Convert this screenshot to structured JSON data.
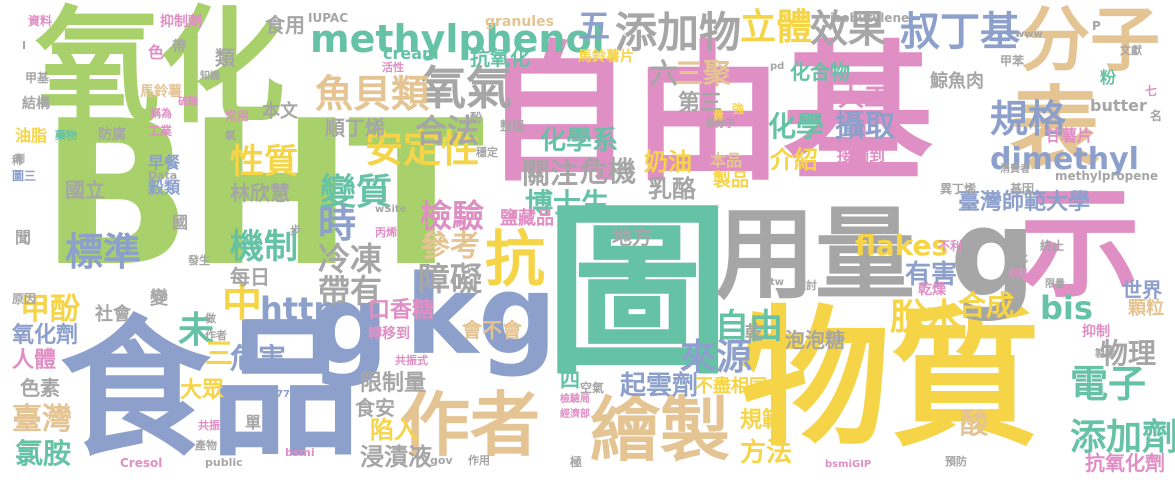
{
  "words": [
    {
      "text": "BHT",
      "color": "#a8d16c"
    },
    {
      "text": "自由基",
      "color": "#e08fc4"
    },
    {
      "text": "圖",
      "color": "#66c2a5"
    },
    {
      "text": "物質",
      "color": "#f5d547"
    },
    {
      "text": "食品",
      "color": "#8da0cb"
    },
    {
      "text": "氧化",
      "color": "#a8d16c"
    },
    {
      "text": "用量",
      "color": "#a6a6a6"
    },
    {
      "text": "kg",
      "color": "#8da0cb"
    },
    {
      "text": "g",
      "color": "#8da0cb"
    },
    {
      "text": "g",
      "color": "#a6a6a6"
    },
    {
      "text": "示",
      "color": "#e08fc4"
    },
    {
      "text": "分子",
      "color": "#e5c494"
    },
    {
      "text": "表",
      "color": "#e5c494"
    },
    {
      "text": "繪製",
      "color": "#e5c494"
    },
    {
      "text": "作者",
      "color": "#e5c494"
    },
    {
      "text": "抗",
      "color": "#f5d547"
    },
    {
      "text": "methylphenol",
      "color": "#66c2a5"
    },
    {
      "text": "添加物",
      "color": "#a6a6a6"
    },
    {
      "text": "氧氣",
      "color": "#a6a6a6"
    },
    {
      "text": "魚貝類",
      "color": "#e5c494"
    },
    {
      "text": "規格",
      "color": "#8da0cb"
    },
    {
      "text": "dimethyl",
      "color": "#8da0cb"
    },
    {
      "text": "效果",
      "color": "#a6a6a6"
    },
    {
      "text": "叔丁基",
      "color": "#8da0cb"
    },
    {
      "text": "立體",
      "color": "#f5d547"
    },
    {
      "text": "五",
      "color": "#8da0cb"
    },
    {
      "text": "六",
      "color": "#a6a6a6"
    },
    {
      "text": "三聚",
      "color": "#e5c494"
    },
    {
      "text": "自由",
      "color": "#66c2a5"
    },
    {
      "text": "電子",
      "color": "#66c2a5"
    },
    {
      "text": "添加劑",
      "color": "#66c2a5"
    },
    {
      "text": "物理",
      "color": "#a6a6a6"
    },
    {
      "text": "脫水",
      "color": "#f5d547"
    },
    {
      "text": "來源",
      "color": "#8da0cb"
    },
    {
      "text": "機制",
      "color": "#66c2a5"
    },
    {
      "text": "http",
      "color": "#8da0cb"
    },
    {
      "text": "標準",
      "color": "#8da0cb"
    },
    {
      "text": "性質",
      "color": "#f5d547"
    },
    {
      "text": "變質",
      "color": "#66c2a5"
    },
    {
      "text": "安定性",
      "color": "#f5d547"
    },
    {
      "text": "檢驗",
      "color": "#e08fc4"
    },
    {
      "text": "參考",
      "color": "#e5c494"
    },
    {
      "text": "障礙",
      "color": "#a6a6a6"
    },
    {
      "text": "冷凍",
      "color": "#a6a6a6"
    },
    {
      "text": "帶有",
      "color": "#a6a6a6"
    },
    {
      "text": "時",
      "color": "#8da0cb"
    },
    {
      "text": "中",
      "color": "#f5d547"
    },
    {
      "text": "未",
      "color": "#66c2a5"
    },
    {
      "text": "甲酚",
      "color": "#f5d547"
    },
    {
      "text": "臺灣",
      "color": "#e5c494"
    },
    {
      "text": "氯胺",
      "color": "#66c2a5"
    },
    {
      "text": "危害",
      "color": "#8da0cb"
    },
    {
      "text": "合法",
      "color": "#a6a6a6"
    },
    {
      "text": "關注",
      "color": "#a6a6a6"
    },
    {
      "text": "危機",
      "color": "#a6a6a6"
    },
    {
      "text": "化學系",
      "color": "#66c2a5"
    },
    {
      "text": "博士生",
      "color": "#66c2a5"
    },
    {
      "text": "化學",
      "color": "#66c2a5"
    },
    {
      "text": "攝取",
      "color": "#8da0cb"
    },
    {
      "text": "人工",
      "color": "#e08fc4"
    },
    {
      "text": "介紹",
      "color": "#f5d547"
    },
    {
      "text": "奶油",
      "color": "#f5d547"
    },
    {
      "text": "乳酪",
      "color": "#a6a6a6"
    },
    {
      "text": "臺灣師範大學",
      "color": "#8da0cb"
    },
    {
      "text": "flakes",
      "color": "#f5d547"
    },
    {
      "text": "bis",
      "color": "#66c2a5"
    },
    {
      "text": "合成",
      "color": "#f5d547"
    },
    {
      "text": "有害",
      "color": "#8da0cb"
    },
    {
      "text": "世界",
      "color": "#8da0cb"
    },
    {
      "text": "顆粒",
      "color": "#e5c494"
    },
    {
      "text": "抑制",
      "color": "#e08fc4"
    },
    {
      "text": "抗氧化劑",
      "color": "#e08fc4"
    },
    {
      "text": "起雲劑",
      "color": "#8da0cb"
    },
    {
      "text": "方法",
      "color": "#f5d547"
    },
    {
      "text": "規範",
      "color": "#f5d547"
    },
    {
      "text": "酸",
      "color": "#e5c494"
    },
    {
      "text": "浸漬液",
      "color": "#a6a6a6"
    },
    {
      "text": "陷入",
      "color": "#f5d547"
    },
    {
      "text": "食安",
      "color": "#a6a6a6"
    },
    {
      "text": "限制量",
      "color": "#a6a6a6"
    },
    {
      "text": "大眾",
      "color": "#f5d547"
    },
    {
      "text": "氧化劑",
      "color": "#8da0cb"
    },
    {
      "text": "人體",
      "color": "#e08fc4"
    },
    {
      "text": "色素",
      "color": "#a6a6a6"
    },
    {
      "text": "口香糖",
      "color": "#e08fc4"
    },
    {
      "text": "泡泡糖",
      "color": "#a6a6a6"
    },
    {
      "text": "不盡相同",
      "color": "#f5d547"
    },
    {
      "text": "會不會",
      "color": "#e5c494"
    },
    {
      "text": "社會",
      "color": "#a6a6a6"
    },
    {
      "text": "每日",
      "color": "#a6a6a6"
    },
    {
      "text": "國立",
      "color": "#a6a6a6"
    },
    {
      "text": "林欣慧",
      "color": "#a6a6a6"
    },
    {
      "text": "順丁烯",
      "color": "#a6a6a6"
    },
    {
      "text": "本文",
      "color": "#a6a6a6"
    },
    {
      "text": "抗氧化",
      "color": "#66c2a5"
    },
    {
      "text": "化合物",
      "color": "#66c2a5"
    },
    {
      "text": "鯨魚肉",
      "color": "#a6a6a6"
    },
    {
      "text": "甘薯片",
      "color": "#e08fc4"
    },
    {
      "text": "馬鈴薯片",
      "color": "#f5d547"
    },
    {
      "text": "食用",
      "color": "#a6a6a6"
    },
    {
      "text": "類",
      "color": "#a6a6a6"
    },
    {
      "text": "cream",
      "color": "#66c2a5"
    },
    {
      "text": "butter",
      "color": "#a6a6a6"
    },
    {
      "text": "第三",
      "color": "#a6a6a6"
    },
    {
      "text": "製品",
      "color": "#f5d547"
    },
    {
      "text": "本品",
      "color": "#e5c494"
    },
    {
      "text": "接觸到",
      "color": "#e08fc4"
    },
    {
      "text": "地方",
      "color": "#a6a6a6"
    },
    {
      "text": "鹽藏品",
      "color": "#e08fc4"
    },
    {
      "text": "乾燥",
      "color": "#e08fc4"
    },
    {
      "text": "轉移到",
      "color": "#e08fc4"
    },
    {
      "text": "資料",
      "color": "#e08fc4"
    },
    {
      "text": "抑制劑",
      "color": "#e08fc4"
    },
    {
      "text": "IUPAC",
      "color": "#a6a6a6"
    },
    {
      "text": "granules",
      "color": "#e5c494"
    },
    {
      "text": "isobutylene",
      "color": "#a6a6a6"
    },
    {
      "text": "色",
      "color": "#e08fc4"
    },
    {
      "text": "粉",
      "color": "#66c2a5"
    },
    {
      "text": "早餐",
      "color": "#8da0cb"
    },
    {
      "text": "穀類",
      "color": "#8da0cb"
    },
    {
      "text": "油脂",
      "color": "#f5d547"
    },
    {
      "text": "防腐",
      "color": "#a6a6a6"
    },
    {
      "text": "馬鈴薯",
      "color": "#e5c494"
    },
    {
      "text": "結構",
      "color": "#a6a6a6"
    },
    {
      "text": "甲基",
      "color": "#a6a6a6"
    },
    {
      "text": "methylpropene",
      "color": "#a6a6a6"
    },
    {
      "text": "異丁烯",
      "color": "#a6a6a6"
    },
    {
      "text": "基因",
      "color": "#a6a6a6"
    },
    {
      "text": "消費者",
      "color": "#a6a6a6"
    },
    {
      "text": "共振式",
      "color": "#e08fc4"
    },
    {
      "text": "共振",
      "color": "#e08fc4"
    },
    {
      "text": "單",
      "color": "#a6a6a6"
    },
    {
      "text": "變",
      "color": "#a6a6a6"
    },
    {
      "text": "國",
      "color": "#a6a6a6"
    },
    {
      "text": "聞",
      "color": "#a6a6a6"
    },
    {
      "text": "Cresol",
      "color": "#e08fc4"
    },
    {
      "text": "bsmi",
      "color": "#e08fc4"
    },
    {
      "text": "bsmiGIP",
      "color": "#e08fc4"
    },
    {
      "text": "四",
      "color": "#66c2a5"
    },
    {
      "text": "空氣",
      "color": "#a6a6a6"
    },
    {
      "text": "乾",
      "color": "#a6a6a6"
    },
    {
      "text": "三",
      "color": "#f5d547"
    },
    {
      "text": "原因",
      "color": "#8da0cb"
    },
    {
      "text": "圖三",
      "color": "#8da0cb"
    },
    {
      "text": "催化",
      "color": "#a6a6a6"
    },
    {
      "text": "原料",
      "color": "#e08fc4"
    },
    {
      "text": "預防",
      "color": "#a6a6a6"
    },
    {
      "text": "產物",
      "color": "#a6a6a6"
    },
    {
      "text": "作用",
      "color": "#a6a6a6"
    },
    {
      "text": "經濟部",
      "color": "#e08fc4"
    },
    {
      "text": "檢驗局",
      "color": "#e08fc4"
    },
    {
      "text": "極",
      "color": "#a6a6a6"
    },
    {
      "text": "不利",
      "color": "#e08fc4"
    },
    {
      "text": "終止",
      "color": "#a6a6a6"
    },
    {
      "text": "丙烯",
      "color": "#e08fc4"
    },
    {
      "text": "稀",
      "color": "#a6a6a6"
    },
    {
      "text": "發生",
      "color": "#a6a6a6"
    },
    {
      "text": "f1317177702268",
      "color": "#8da0cb"
    },
    {
      "text": "wSite",
      "color": "#a6a6a6"
    },
    {
      "text": "Data",
      "color": "#a6a6a6"
    },
    {
      "text": "public",
      "color": "#a6a6a6"
    },
    {
      "text": "gov",
      "color": "#a6a6a6"
    },
    {
      "text": "pd",
      "color": "#a6a6a6"
    },
    {
      "text": "tw",
      "color": "#a6a6a6"
    },
    {
      "text": "www",
      "color": "#a6a6a6"
    },
    {
      "text": "文獻",
      "color": "#a6a6a6"
    },
    {
      "text": "甲苯",
      "color": "#a6a6a6"
    },
    {
      "text": "名",
      "color": "#a6a6a6"
    },
    {
      "text": "七",
      "color": "#e08fc4"
    },
    {
      "text": "強",
      "color": "#f5d547"
    },
    {
      "text": "量",
      "color": "#f5d547"
    },
    {
      "text": "基分子",
      "color": "#a6a6a6"
    },
    {
      "text": "整理",
      "color": "#a6a6a6"
    },
    {
      "text": "穩定",
      "color": "#a6a6a6"
    },
    {
      "text": "酚",
      "color": "#a6a6a6"
    },
    {
      "text": "硫酸",
      "color": "#e08fc4"
    },
    {
      "text": "常用",
      "color": "#e08fc4"
    },
    {
      "text": "氧",
      "color": "#a6a6a6"
    },
    {
      "text": "稱為",
      "color": "#e08fc4"
    },
    {
      "text": "工業",
      "color": "#e08fc4"
    },
    {
      "text": "藥物",
      "color": "#66c2a5"
    },
    {
      "text": "劑",
      "color": "#a6a6a6"
    },
    {
      "text": "帶",
      "color": "#a6a6a6"
    },
    {
      "text": "知識",
      "color": "#a6a6a6"
    },
    {
      "text": "活性",
      "color": "#e08fc4"
    },
    {
      "text": "步",
      "color": "#a6a6a6"
    },
    {
      "text": "探討",
      "color": "#a6a6a6"
    },
    {
      "text": "限量",
      "color": "#a6a6a6"
    },
    {
      "text": "製備",
      "color": "#a6a6a6"
    },
    {
      "text": "做",
      "color": "#a6a6a6"
    },
    {
      "text": "作者",
      "color": "#a6a6a6"
    },
    {
      "text": "P",
      "color": "#a6a6a6"
    },
    {
      "text": "I",
      "color": "#a6a6a6"
    }
  ]
}
